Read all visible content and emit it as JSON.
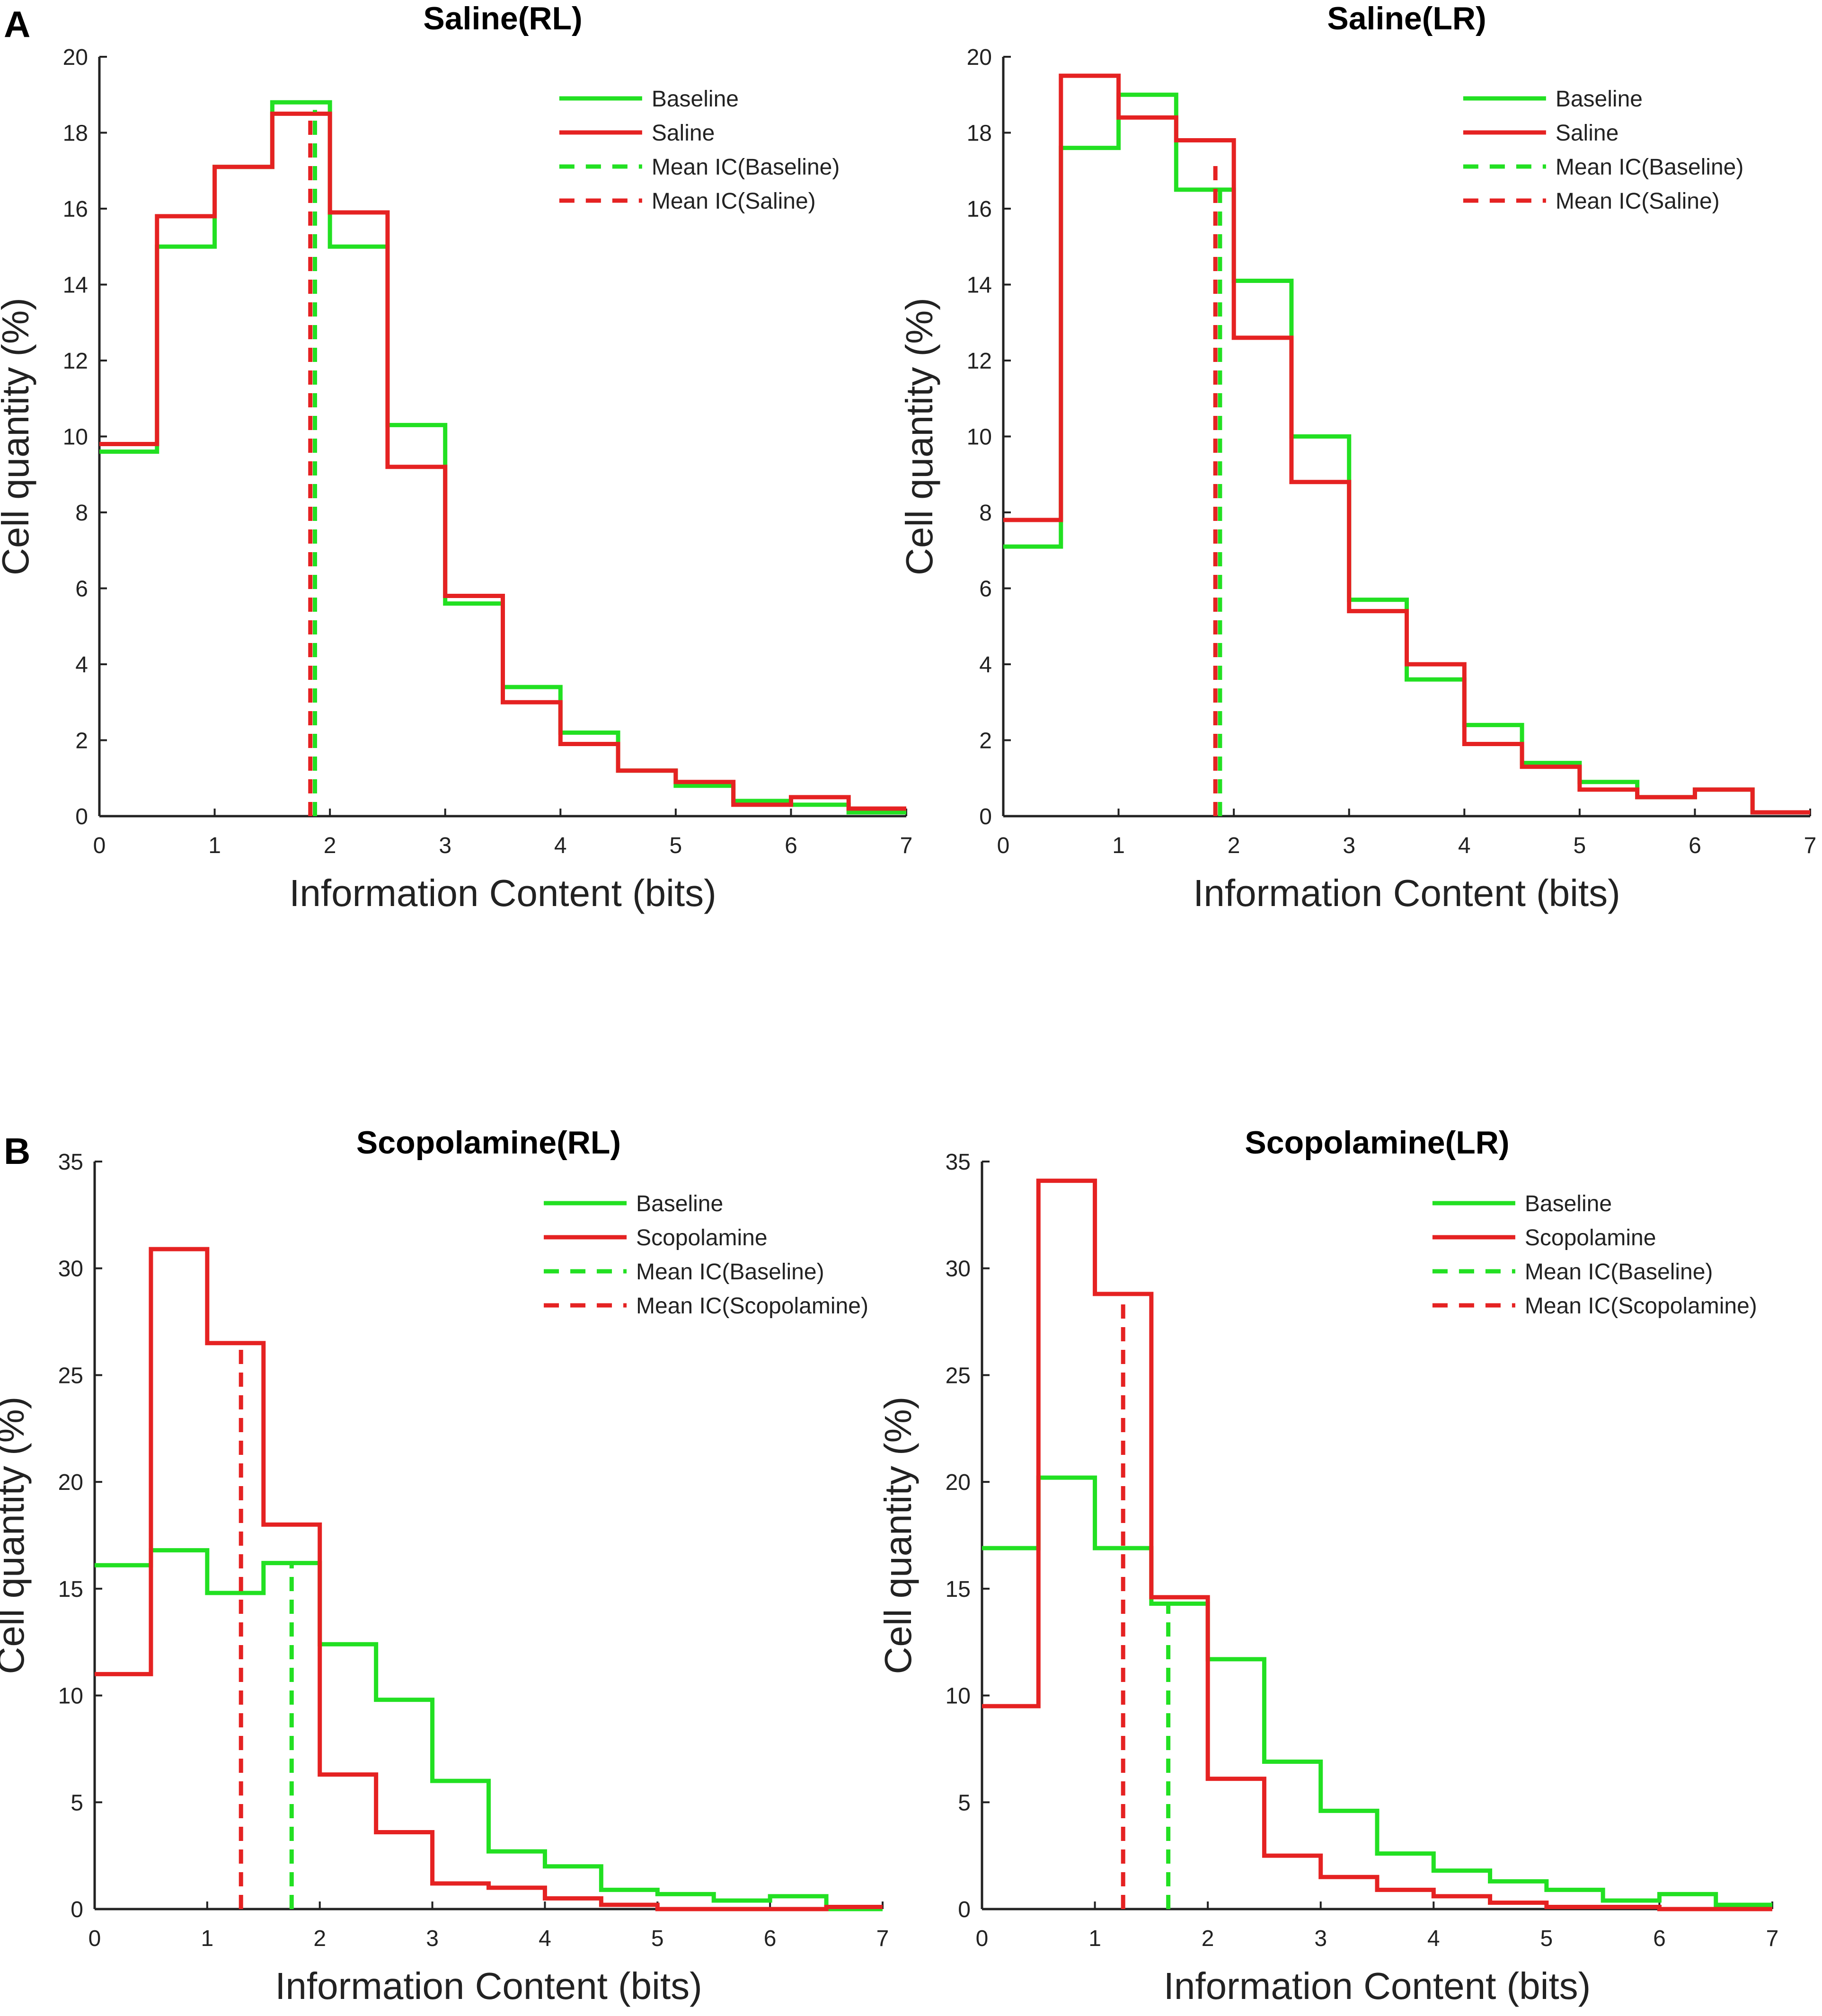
{
  "panels": [
    {
      "label": "A"
    },
    {
      "label": "B"
    }
  ],
  "colors": {
    "baseline": "#22e022",
    "treatment": "#e52222",
    "axis": "#222222"
  },
  "chart_data": [
    {
      "type": "line",
      "style": "step-histogram",
      "title": "Saline(RL)",
      "xlabel": "Information Content (bits)",
      "ylabel": "Cell quantity (%)",
      "xlim": [
        0,
        7
      ],
      "ylim": [
        0,
        20
      ],
      "xticks": [
        "0",
        "1",
        "2",
        "3",
        "4",
        "5",
        "6",
        "7"
      ],
      "yticks": [
        "0",
        "2",
        "4",
        "6",
        "8",
        "10",
        "12",
        "14",
        "16",
        "18",
        "20"
      ],
      "bin_edges": [
        0,
        0.5,
        1,
        1.5,
        2,
        2.5,
        3,
        3.5,
        4,
        4.5,
        5,
        5.5,
        6,
        6.5,
        7
      ],
      "series": [
        {
          "name": "Baseline",
          "color": "#22e022",
          "values": [
            9.6,
            15.0,
            17.1,
            18.8,
            15.0,
            10.3,
            5.6,
            3.4,
            2.2,
            1.2,
            0.8,
            0.4,
            0.3,
            0.1
          ]
        },
        {
          "name": "Saline",
          "color": "#e52222",
          "values": [
            9.8,
            15.8,
            17.1,
            18.5,
            15.9,
            9.2,
            5.8,
            3.0,
            1.9,
            1.2,
            0.9,
            0.3,
            0.5,
            0.2
          ]
        }
      ],
      "mean_lines": [
        {
          "name": "Mean IC(Baseline)",
          "color": "#22e022",
          "x": 1.87,
          "top": 18.6
        },
        {
          "name": "Mean IC(Saline)",
          "color": "#e52222",
          "x": 1.83,
          "top": 18.5
        }
      ],
      "legend": [
        "Baseline",
        "Saline",
        "Mean IC(Baseline)",
        "Mean IC(Saline)"
      ]
    },
    {
      "type": "line",
      "style": "step-histogram",
      "title": "Saline(LR)",
      "xlabel": "Information Content (bits)",
      "ylabel": "Cell quantity (%)",
      "xlim": [
        0,
        7
      ],
      "ylim": [
        0,
        20
      ],
      "xticks": [
        "0",
        "1",
        "2",
        "3",
        "4",
        "5",
        "6",
        "7"
      ],
      "yticks": [
        "0",
        "2",
        "4",
        "6",
        "8",
        "10",
        "12",
        "14",
        "16",
        "18",
        "20"
      ],
      "bin_edges": [
        0,
        0.5,
        1,
        1.5,
        2,
        2.5,
        3,
        3.5,
        4,
        4.5,
        5,
        5.5,
        6,
        6.5,
        7
      ],
      "series": [
        {
          "name": "Baseline",
          "color": "#22e022",
          "values": [
            7.1,
            17.6,
            19.0,
            16.5,
            14.1,
            10.0,
            5.7,
            3.6,
            2.4,
            1.4,
            0.9,
            0.5,
            0.7,
            0.1
          ]
        },
        {
          "name": "Saline",
          "color": "#e52222",
          "values": [
            7.8,
            19.5,
            18.4,
            17.8,
            12.6,
            8.8,
            5.4,
            4.0,
            1.9,
            1.3,
            0.7,
            0.5,
            0.7,
            0.1
          ]
        }
      ],
      "mean_lines": [
        {
          "name": "Mean IC(Baseline)",
          "color": "#22e022",
          "x": 1.88,
          "top": 16.5
        },
        {
          "name": "Mean IC(Saline)",
          "color": "#e52222",
          "x": 1.84,
          "top": 17.2
        }
      ],
      "legend": [
        "Baseline",
        "Saline",
        "Mean IC(Baseline)",
        "Mean IC(Saline)"
      ]
    },
    {
      "type": "line",
      "style": "step-histogram",
      "title": "Scopolamine(RL)",
      "xlabel": "Information Content (bits)",
      "ylabel": "Cell quantity (%)",
      "xlim": [
        0,
        7
      ],
      "ylim": [
        0,
        35
      ],
      "xticks": [
        "0",
        "1",
        "2",
        "3",
        "4",
        "5",
        "6",
        "7"
      ],
      "yticks": [
        "0",
        "5",
        "10",
        "15",
        "20",
        "25",
        "30",
        "35"
      ],
      "bin_edges": [
        0,
        0.5,
        1,
        1.5,
        2,
        2.5,
        3,
        3.5,
        4,
        4.5,
        5,
        5.5,
        6,
        6.5,
        7
      ],
      "series": [
        {
          "name": "Baseline",
          "color": "#22e022",
          "values": [
            16.1,
            16.8,
            14.8,
            16.2,
            12.4,
            9.8,
            6.0,
            2.7,
            2.0,
            0.9,
            0.7,
            0.4,
            0.6,
            0.0
          ]
        },
        {
          "name": "Scopolamine",
          "color": "#e52222",
          "values": [
            11.0,
            30.9,
            26.5,
            18.0,
            6.3,
            3.6,
            1.2,
            1.0,
            0.5,
            0.2,
            0.0,
            0.0,
            0.0,
            0.1
          ]
        }
      ],
      "mean_lines": [
        {
          "name": "Mean IC(Baseline)",
          "color": "#22e022",
          "x": 1.75,
          "top": 16.2
        },
        {
          "name": "Mean IC(Scopolamine)",
          "color": "#e52222",
          "x": 1.3,
          "top": 26.5
        }
      ],
      "legend": [
        "Baseline",
        "Scopolamine",
        "Mean IC(Baseline)",
        "Mean IC(Scopolamine)"
      ]
    },
    {
      "type": "line",
      "style": "step-histogram",
      "title": "Scopolamine(LR)",
      "xlabel": "Information Content (bits)",
      "ylabel": "Cell quantity (%)",
      "xlim": [
        0,
        7
      ],
      "ylim": [
        0,
        35
      ],
      "xticks": [
        "0",
        "1",
        "2",
        "3",
        "4",
        "5",
        "6",
        "7"
      ],
      "yticks": [
        "0",
        "5",
        "10",
        "15",
        "20",
        "25",
        "30",
        "35"
      ],
      "bin_edges": [
        0,
        0.5,
        1,
        1.5,
        2,
        2.5,
        3,
        3.5,
        4,
        4.5,
        5,
        5.5,
        6,
        6.5,
        7
      ],
      "series": [
        {
          "name": "Baseline",
          "color": "#22e022",
          "values": [
            16.9,
            20.2,
            16.9,
            14.3,
            11.7,
            6.9,
            4.6,
            2.6,
            1.8,
            1.3,
            0.9,
            0.4,
            0.7,
            0.2
          ]
        },
        {
          "name": "Scopolamine",
          "color": "#e52222",
          "values": [
            9.5,
            34.1,
            28.8,
            14.6,
            6.1,
            2.5,
            1.5,
            0.9,
            0.6,
            0.3,
            0.1,
            0.1,
            0.0,
            0.0
          ]
        }
      ],
      "mean_lines": [
        {
          "name": "Mean IC(Baseline)",
          "color": "#22e022",
          "x": 1.65,
          "top": 14.3
        },
        {
          "name": "Mean IC(Scopolamine)",
          "color": "#e52222",
          "x": 1.25,
          "top": 28.5
        }
      ],
      "legend": [
        "Baseline",
        "Scopolamine",
        "Mean IC(Baseline)",
        "Mean IC(Scopolamine)"
      ]
    }
  ]
}
